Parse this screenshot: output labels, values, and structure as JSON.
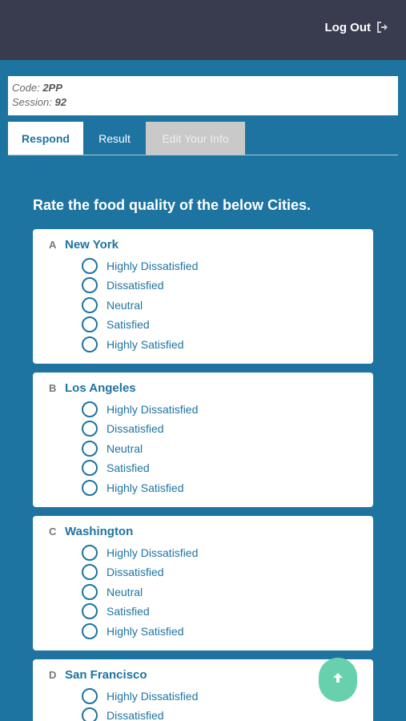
{
  "header": {
    "logout_label": "Log Out",
    "logout_icon": "sign-out-icon"
  },
  "session": {
    "code_label": "Code:",
    "code_value": "2PP",
    "session_label": "Session:",
    "session_value": "92"
  },
  "tabs": [
    {
      "label": "Respond",
      "active": true
    },
    {
      "label": "Result"
    },
    {
      "label": "Edit Your Info",
      "disabled": true
    }
  ],
  "question": {
    "title": "Rate the food quality of the below Cities."
  },
  "options": [
    "Highly Dissatisfied",
    "Dissatisfied",
    "Neutral",
    "Satisfied",
    "Highly Satisfied"
  ],
  "items": [
    {
      "letter": "A",
      "city": "New York"
    },
    {
      "letter": "B",
      "city": "Los Angeles"
    },
    {
      "letter": "C",
      "city": "Washington"
    },
    {
      "letter": "D",
      "city": "San Francisco"
    }
  ],
  "scroll_top": {
    "icon": "arrow-up-icon",
    "color": "#67d1ad"
  },
  "colors": {
    "accent": "#1e74a1",
    "topbar": "#383c4e",
    "tab_disabled": "#c9c9c9"
  }
}
